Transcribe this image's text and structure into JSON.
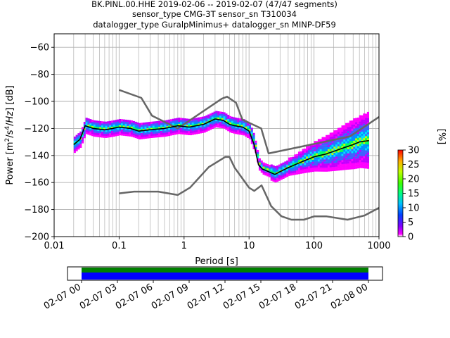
{
  "title": {
    "line1": "BK.PINL.00.HHE   2019-02-06 -- 2019-02-07  (47/47 segments)",
    "line2": "sensor_type CMG-3T sensor_sn T310034",
    "line3": "datalogger_type GuralpMinimus+ datalogger_sn MINP-DF59"
  },
  "chart_data": {
    "type": "heatmap",
    "xlabel": "Period [s]",
    "ylabel": "Power [m^2/s^4/Hz] [dB]",
    "x_scale": "log",
    "xlim": [
      0.01,
      1000
    ],
    "ylim": [
      -200,
      -50
    ],
    "grid": true,
    "x_ticks": [
      {
        "value": 0.01,
        "label": "0.01"
      },
      {
        "value": 0.1,
        "label": "0.1"
      },
      {
        "value": 1,
        "label": "1"
      },
      {
        "value": 10,
        "label": "10"
      },
      {
        "value": 100,
        "label": "100"
      },
      {
        "value": 1000,
        "label": "1000"
      }
    ],
    "y_ticks": [
      {
        "value": -60,
        "label": "−60"
      },
      {
        "value": -80,
        "label": "−80"
      },
      {
        "value": -100,
        "label": "−100"
      },
      {
        "value": -120,
        "label": "−120"
      },
      {
        "value": -140,
        "label": "−140"
      },
      {
        "value": -160,
        "label": "−160"
      },
      {
        "value": -180,
        "label": "−180"
      },
      {
        "value": -200,
        "label": "−200"
      }
    ],
    "high_noise_model": {
      "x": [
        0.1,
        0.22,
        0.32,
        0.8,
        3.8,
        4.6,
        6.3,
        7.9,
        15.4,
        20,
        354.8,
        1000
      ],
      "y": [
        -91.5,
        -97.4,
        -110.5,
        -120,
        -98,
        -96.5,
        -101,
        -113.5,
        -120,
        -138.5,
        -126,
        -111.5
      ]
    },
    "low_noise_model": {
      "x": [
        0.1,
        0.17,
        0.4,
        0.8,
        1.24,
        2.4,
        4.3,
        5,
        6,
        10,
        12,
        15.6,
        21.9,
        31.6,
        45,
        70,
        101,
        154,
        328,
        600,
        1000
      ],
      "y": [
        -168,
        -166.7,
        -166.7,
        -169.2,
        -163.7,
        -148.6,
        -141.1,
        -141.1,
        -149,
        -163.8,
        -166.2,
        -162.1,
        -177.5,
        -185,
        -187.5,
        -187.5,
        -185,
        -185,
        -187.5,
        -184.4,
        -178.7
      ]
    },
    "mean_psd": {
      "x": [
        0.02,
        0.025,
        0.03,
        0.04,
        0.06,
        0.08,
        0.1,
        0.15,
        0.2,
        0.3,
        0.5,
        0.8,
        1.2,
        2,
        3,
        4,
        5,
        6,
        8,
        10,
        12,
        13,
        14,
        16,
        20,
        25,
        30,
        40,
        50,
        70,
        100,
        150,
        200,
        300,
        400,
        500,
        700
      ],
      "y": [
        -132,
        -128,
        -118,
        -120,
        -121,
        -120,
        -119,
        -120,
        -122,
        -121,
        -120,
        -118,
        -119,
        -117,
        -113,
        -114,
        -117,
        -118,
        -119,
        -122,
        -132,
        -140,
        -147,
        -150,
        -152,
        -154,
        -152,
        -149,
        -147,
        -144,
        -141,
        -139,
        -137,
        -134,
        -132,
        -130,
        -129
      ]
    },
    "colorbar": {
      "label": "[%]",
      "min": 0,
      "max": 30,
      "ticks": [
        {
          "value": 0,
          "label": "0"
        },
        {
          "value": 5,
          "label": "5"
        },
        {
          "value": 10,
          "label": "10"
        },
        {
          "value": 15,
          "label": "15"
        },
        {
          "value": 20,
          "label": "20"
        },
        {
          "value": 25,
          "label": "25"
        },
        {
          "value": 30,
          "label": "30"
        }
      ]
    },
    "data_coverage": {
      "ticks": [
        "02-07 00",
        "02-07 03",
        "02-07 06",
        "02-07 09",
        "02-07 12",
        "02-07 15",
        "02-07 18",
        "02-07 21",
        "02-08 00"
      ],
      "coverage_color": "#0000ff",
      "availability_color": "#008000"
    }
  }
}
